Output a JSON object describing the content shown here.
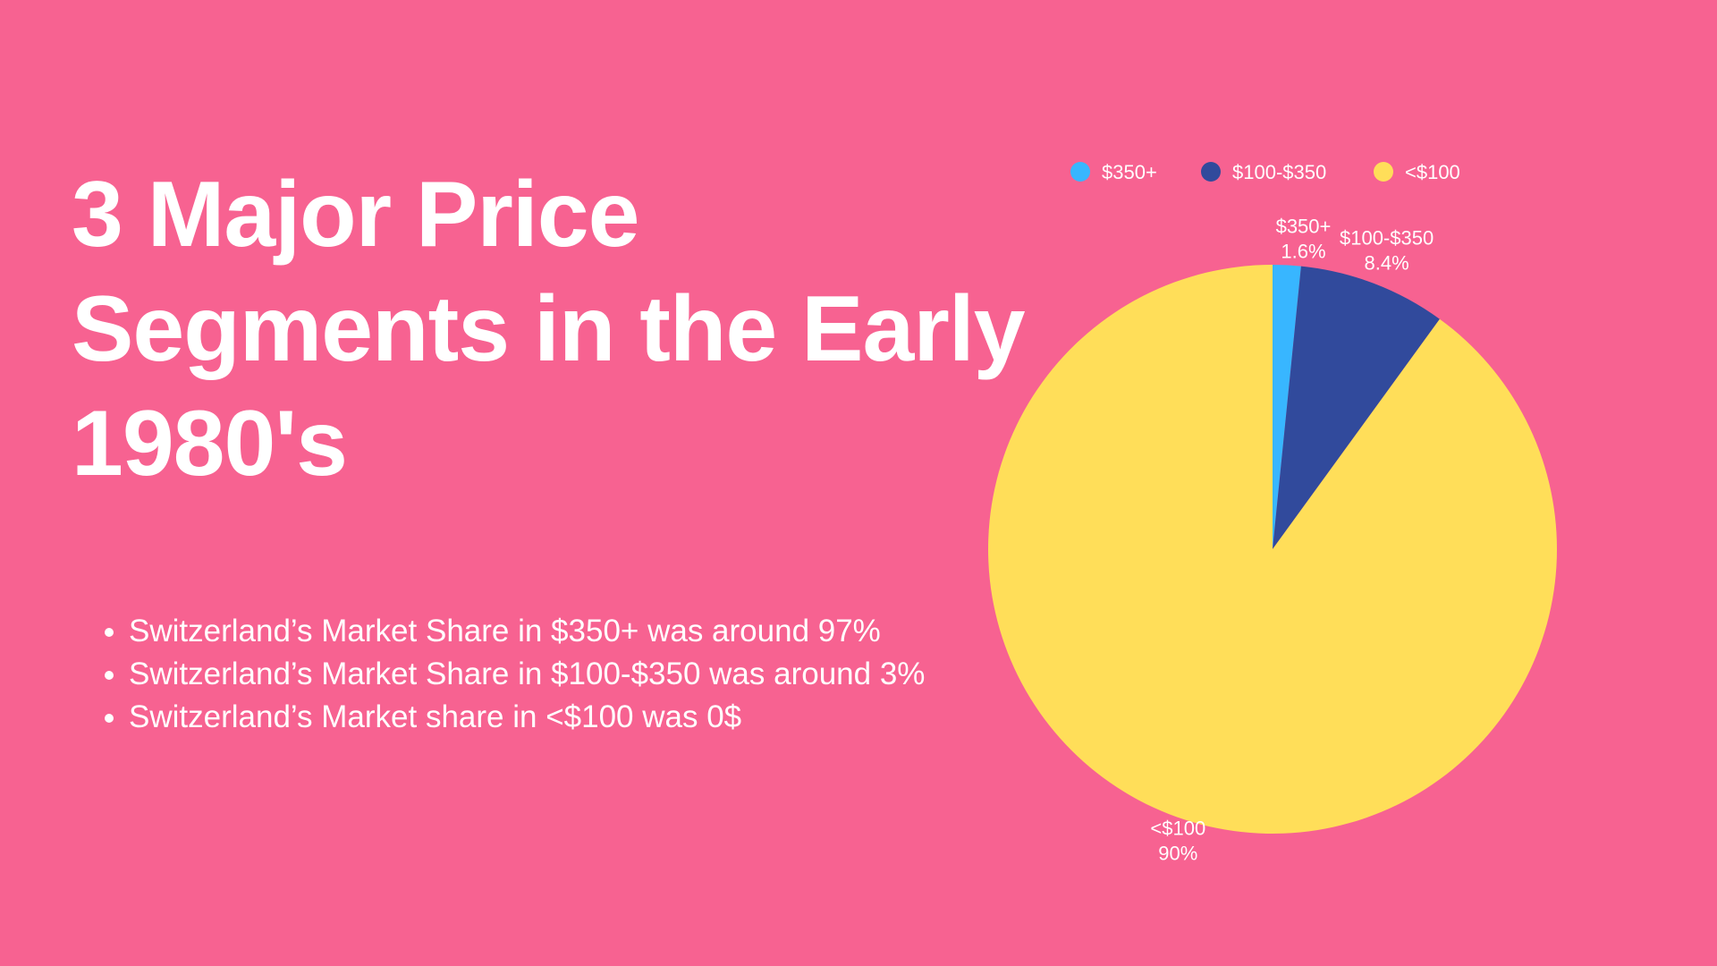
{
  "slide": {
    "background_color": "#F76291",
    "title_lines": [
      "3 Major Price",
      "Segments in the Early",
      "1980's"
    ],
    "bullets": [
      "Switzerland’s Market Share in $350+ was around 97%",
      "Switzerland’s Market Share in $100-$350 was around 3%",
      "Switzerland’s Market share in <$100 was 0$"
    ]
  },
  "chart_data": {
    "type": "pie",
    "legend_position": "top",
    "slices": [
      {
        "label": "$350+",
        "value": 1.6,
        "value_label": "1.6%",
        "color": "#38B6FF"
      },
      {
        "label": "$100-$350",
        "value": 8.4,
        "value_label": "8.4%",
        "color": "#314A9C"
      },
      {
        "label": "<$100",
        "value": 90,
        "value_label": "90%",
        "color": "#FFDE59"
      }
    ]
  }
}
